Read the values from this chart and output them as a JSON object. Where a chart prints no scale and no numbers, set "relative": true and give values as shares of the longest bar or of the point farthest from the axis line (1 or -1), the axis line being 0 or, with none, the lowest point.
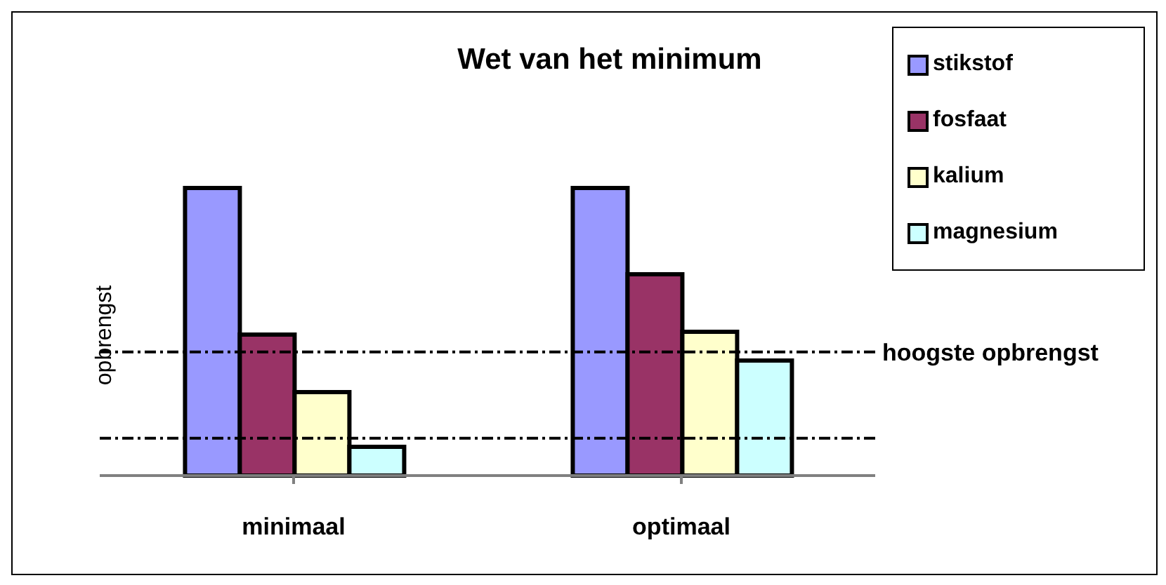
{
  "chart_data": {
    "type": "bar",
    "title": "Wet van het minimum",
    "ylabel": "opbrengst",
    "relative": true,
    "categories": [
      "minimaal",
      "optimaal"
    ],
    "series": [
      {
        "name": "stikstof",
        "color": "#9999ff",
        "values": [
          1,
          1
        ]
      },
      {
        "name": "fosfaat",
        "color": "#993366",
        "values": [
          0.49,
          0.7
        ]
      },
      {
        "name": "kalium",
        "color": "#ffffcc",
        "values": [
          0.29,
          0.5
        ]
      },
      {
        "name": "magnesium",
        "color": "#ccffff",
        "values": [
          0.1,
          0.4
        ]
      }
    ],
    "ref_lines": [
      {
        "axis": "y",
        "value": 0.13,
        "line_style": "dashed"
      },
      {
        "axis": "y",
        "value": 0.43,
        "label": "hoogste opbrengst",
        "line_style": "dashed"
      }
    ],
    "legend": "top right",
    "grid": false
  }
}
